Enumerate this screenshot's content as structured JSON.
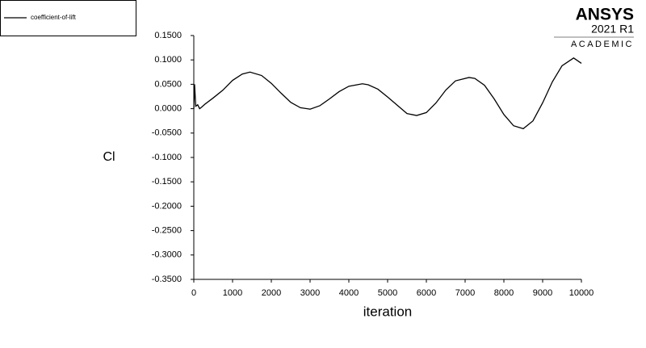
{
  "chart_data": {
    "type": "line",
    "title": null,
    "xlabel": "iteration",
    "ylabel": "Cl",
    "annotations": [
      "ANSYS",
      "2021 R1",
      "ACADEMIC"
    ],
    "x": [
      0,
      20,
      50,
      100,
      150,
      200,
      300,
      500,
      750,
      1000,
      1250,
      1450,
      1750,
      2000,
      2250,
      2500,
      2750,
      3000,
      3250,
      3500,
      3750,
      4000,
      4350,
      4500,
      4750,
      5000,
      5250,
      5500,
      5750,
      6000,
      6250,
      6500,
      6750,
      7100,
      7250,
      7500,
      7750,
      8000,
      8250,
      8500,
      8750,
      9000,
      9250,
      9500,
      9800,
      10000
    ],
    "series": [
      {
        "name": "coefficient-of-lift",
        "color": "#000000",
        "values": [
          0.0,
          0.05,
          0.005,
          0.008,
          0.0,
          0.003,
          0.01,
          0.022,
          0.038,
          0.058,
          0.071,
          0.075,
          0.068,
          0.052,
          0.032,
          0.013,
          0.002,
          -0.001,
          0.006,
          0.02,
          0.035,
          0.046,
          0.051,
          0.049,
          0.04,
          0.024,
          0.007,
          -0.01,
          -0.014,
          -0.008,
          0.012,
          0.038,
          0.057,
          0.064,
          0.062,
          0.048,
          0.02,
          -0.012,
          -0.035,
          -0.041,
          -0.025,
          0.012,
          0.055,
          0.088,
          0.104,
          0.093
        ]
      }
    ],
    "xlim": [
      0,
      10000
    ],
    "ylim": [
      -0.35,
      0.15
    ],
    "xticks": [
      0,
      1000,
      2000,
      3000,
      4000,
      5000,
      6000,
      7000,
      8000,
      9000,
      10000
    ],
    "yticks": [
      {
        "value": -0.35,
        "label": "-0.3500"
      },
      {
        "value": -0.3,
        "label": "-0.3000"
      },
      {
        "value": -0.25,
        "label": "-0.2500"
      },
      {
        "value": -0.2,
        "label": "-0.2000"
      },
      {
        "value": -0.15,
        "label": "-0.1500"
      },
      {
        "value": -0.1,
        "label": "-0.1000"
      },
      {
        "value": -0.05,
        "label": "-0.0500"
      },
      {
        "value": 0,
        "label": "0.0000"
      },
      {
        "value": 0.05,
        "label": "0.0500"
      },
      {
        "value": 0.1,
        "label": "0.1000"
      },
      {
        "value": 0.15,
        "label": "0.1500"
      }
    ],
    "grid": false
  }
}
